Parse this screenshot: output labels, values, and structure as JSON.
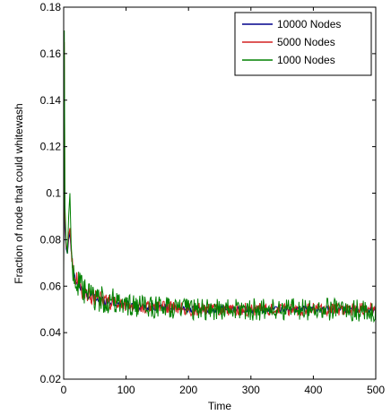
{
  "chart_data": {
    "type": "line",
    "xlabel": "Time",
    "ylabel": "Fraction of node that could whitewash",
    "xlim": [
      0,
      500
    ],
    "ylim": [
      0.02,
      0.18
    ],
    "x_ticks": [
      "0",
      "100",
      "200",
      "300",
      "400",
      "500"
    ],
    "y_ticks": [
      "0.02",
      "0.04",
      "0.06",
      "0.08",
      "0.1",
      "0.12",
      "0.14",
      "0.16",
      "0.18"
    ],
    "grid": false,
    "legend_position": "top-right",
    "series": [
      {
        "name": "10000 Nodes",
        "color": "#00008b",
        "points": [
          [
            0,
            0.07
          ],
          [
            1,
            0.12
          ],
          [
            2,
            0.085
          ],
          [
            4,
            0.076
          ],
          [
            6,
            0.074
          ],
          [
            8,
            0.08
          ],
          [
            10,
            0.083
          ],
          [
            12,
            0.075
          ],
          [
            15,
            0.066
          ],
          [
            20,
            0.062
          ],
          [
            25,
            0.06
          ],
          [
            30,
            0.058
          ],
          [
            40,
            0.056
          ],
          [
            50,
            0.055
          ],
          [
            60,
            0.054
          ],
          [
            80,
            0.053
          ],
          [
            100,
            0.052
          ],
          [
            130,
            0.051
          ],
          [
            160,
            0.051
          ],
          [
            200,
            0.05
          ],
          [
            250,
            0.05
          ],
          [
            300,
            0.05
          ],
          [
            350,
            0.05
          ],
          [
            400,
            0.05
          ],
          [
            450,
            0.05
          ],
          [
            500,
            0.05
          ]
        ],
        "noise": 0.0015
      },
      {
        "name": "5000 Nodes",
        "color": "#d42020",
        "points": [
          [
            0,
            0.068
          ],
          [
            1,
            0.165
          ],
          [
            2,
            0.09
          ],
          [
            4,
            0.077
          ],
          [
            6,
            0.075
          ],
          [
            8,
            0.082
          ],
          [
            10,
            0.085
          ],
          [
            12,
            0.076
          ],
          [
            15,
            0.067
          ],
          [
            20,
            0.063
          ],
          [
            25,
            0.061
          ],
          [
            30,
            0.058
          ],
          [
            40,
            0.056
          ],
          [
            50,
            0.055
          ],
          [
            60,
            0.054
          ],
          [
            80,
            0.053
          ],
          [
            100,
            0.052
          ],
          [
            130,
            0.051
          ],
          [
            160,
            0.051
          ],
          [
            200,
            0.05
          ],
          [
            250,
            0.05
          ],
          [
            300,
            0.05
          ],
          [
            350,
            0.05
          ],
          [
            400,
            0.05
          ],
          [
            450,
            0.05
          ],
          [
            500,
            0.05
          ]
        ],
        "noise": 0.0028
      },
      {
        "name": "1000 Nodes",
        "color": "#008000",
        "points": [
          [
            0,
            0.065
          ],
          [
            1,
            0.17
          ],
          [
            2,
            0.095
          ],
          [
            4,
            0.079
          ],
          [
            6,
            0.074
          ],
          [
            8,
            0.09
          ],
          [
            10,
            0.1
          ],
          [
            12,
            0.078
          ],
          [
            15,
            0.066
          ],
          [
            20,
            0.062
          ],
          [
            25,
            0.06
          ],
          [
            30,
            0.058
          ],
          [
            40,
            0.056
          ],
          [
            50,
            0.055
          ],
          [
            60,
            0.054
          ],
          [
            80,
            0.053
          ],
          [
            100,
            0.052
          ],
          [
            130,
            0.051
          ],
          [
            160,
            0.051
          ],
          [
            200,
            0.05
          ],
          [
            250,
            0.05
          ],
          [
            300,
            0.05
          ],
          [
            350,
            0.05
          ],
          [
            400,
            0.05
          ],
          [
            450,
            0.05
          ],
          [
            500,
            0.049
          ]
        ],
        "noise": 0.0048
      }
    ]
  }
}
